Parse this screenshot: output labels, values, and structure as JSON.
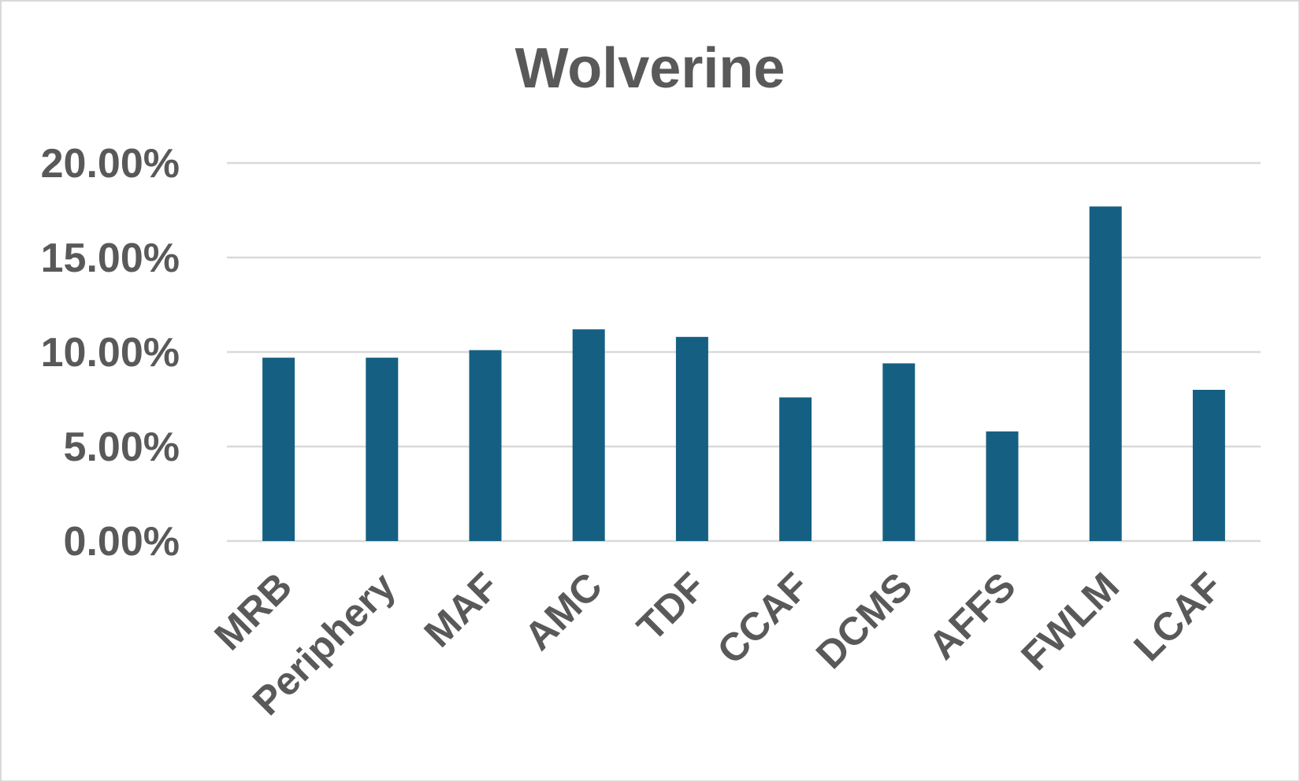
{
  "chart_data": {
    "type": "bar",
    "title": "Wolverine",
    "xlabel": "",
    "ylabel": "",
    "categories": [
      "MRB",
      "Periphery",
      "MAF",
      "AMC",
      "TDF",
      "CCAF",
      "DCMS",
      "AFFS",
      "FWLM",
      "LCAF"
    ],
    "series": [
      {
        "values": [
          0.097,
          0.097,
          0.101,
          0.112,
          0.108,
          0.076,
          0.094,
          0.058,
          0.177,
          0.08
        ]
      }
    ],
    "ylim": [
      0,
      0.2
    ],
    "yticks": [
      0,
      0.05,
      0.1,
      0.15,
      0.2
    ],
    "ytick_labels": [
      "0.00%",
      "5.00%",
      "10.00%",
      "15.00%",
      "20.00%"
    ],
    "grid": true,
    "legend": "none",
    "colors": {
      "bar": "#156082",
      "gridline": "#d9d9d9",
      "text": "#595959",
      "border": "#d9d9d9"
    }
  }
}
